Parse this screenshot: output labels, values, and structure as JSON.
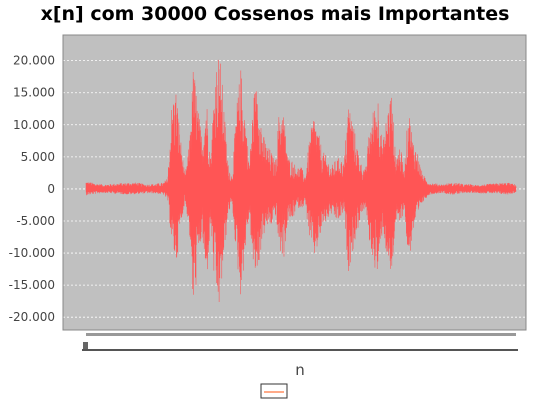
{
  "chart_data": {
    "type": "line",
    "title": "x[n] com 30000 Cossenos mais Importantes",
    "xlabel": "n",
    "ylabel": "",
    "ylim": [
      -22000,
      24000
    ],
    "yticks": [
      -20000,
      -15000,
      -10000,
      -5000,
      0,
      5000,
      10000,
      15000,
      20000
    ],
    "ytick_labels": [
      "-20.000",
      "-15.000",
      "-10.000",
      "-5.000",
      "0",
      "5.000",
      "10.000",
      "15.000",
      "20.000"
    ],
    "grid": true,
    "legend_placement": "bottom-center",
    "series": [
      {
        "color": "#ff5555",
        "x": [
          0.0,
          0.02,
          0.04,
          0.06,
          0.08,
          0.1,
          0.12,
          0.14,
          0.16,
          0.18,
          0.19,
          0.2,
          0.21,
          0.22,
          0.23,
          0.24,
          0.25,
          0.26,
          0.27,
          0.28,
          0.29,
          0.3,
          0.31,
          0.32,
          0.33,
          0.34,
          0.35,
          0.36,
          0.37,
          0.38,
          0.39,
          0.4,
          0.41,
          0.42,
          0.43,
          0.44,
          0.45,
          0.46,
          0.47,
          0.48,
          0.49,
          0.5,
          0.51,
          0.52,
          0.53,
          0.54,
          0.55,
          0.56,
          0.57,
          0.58,
          0.59,
          0.6,
          0.61,
          0.62,
          0.63,
          0.64,
          0.65,
          0.66,
          0.67,
          0.68,
          0.69,
          0.7,
          0.71,
          0.72,
          0.73,
          0.74,
          0.75,
          0.76,
          0.77,
          0.78,
          0.79,
          0.8,
          0.81,
          0.82,
          0.83,
          0.84,
          0.85,
          0.86,
          0.87,
          0.88,
          0.89,
          0.9,
          0.92,
          0.94,
          0.96,
          0.98,
          1.0
        ],
        "upper": [
          1200,
          900,
          700,
          800,
          900,
          1000,
          1000,
          700,
          800,
          1000,
          1800,
          14000,
          16000,
          8000,
          2000,
          7000,
          20000,
          13000,
          8000,
          15000,
          5000,
          19000,
          22000,
          14000,
          4000,
          2000,
          13000,
          19000,
          12000,
          4000,
          15000,
          17000,
          9000,
          7000,
          6000,
          4000,
          13000,
          12000,
          5000,
          4500,
          3500,
          3500,
          2000,
          8000,
          12000,
          9000,
          6000,
          5000,
          3500,
          4500,
          5000,
          4000,
          14000,
          11000,
          7000,
          4000,
          3000,
          10000,
          13000,
          15000,
          7000,
          12000,
          16000,
          5000,
          7000,
          3000,
          13000,
          8000,
          6000,
          3000,
          1500,
          1000,
          900,
          800,
          700,
          900,
          900,
          1000,
          900,
          700,
          800,
          600,
          700,
          800,
          900,
          1000,
          700
        ],
        "lower": [
          -1000,
          -800,
          -600,
          -700,
          -800,
          -900,
          -800,
          -700,
          -700,
          -900,
          -1800,
          -9000,
          -12000,
          -6000,
          -2000,
          -6000,
          -20000,
          -12000,
          -7000,
          -16000,
          -5000,
          -17000,
          -19000,
          -12000,
          -4000,
          -2500,
          -11000,
          -17000,
          -10000,
          -4000,
          -14000,
          -13000,
          -8000,
          -6000,
          -6000,
          -4000,
          -10000,
          -11000,
          -5000,
          -5000,
          -3000,
          -3000,
          -2500,
          -8000,
          -11000,
          -9000,
          -6000,
          -5000,
          -4000,
          -5000,
          -5000,
          -3500,
          -13000,
          -10000,
          -7000,
          -4000,
          -3000,
          -9000,
          -12000,
          -14000,
          -6000,
          -11000,
          -15000,
          -5000,
          -6000,
          -3000,
          -12000,
          -7000,
          -5000,
          -2500,
          -1500,
          -900,
          -800,
          -700,
          -600,
          -800,
          -900,
          -900,
          -800,
          -600,
          -700,
          -600,
          -700,
          -700,
          -800,
          -900,
          -600
        ]
      }
    ]
  }
}
